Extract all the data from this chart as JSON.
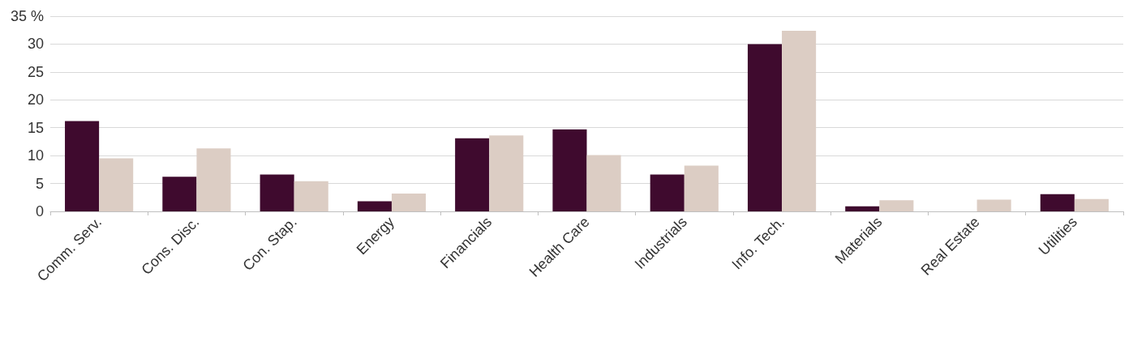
{
  "chart_data": {
    "type": "bar",
    "categories": [
      "Comm. Serv.",
      "Cons. Disc.",
      "Con. Stap.",
      "Energy",
      "Financials",
      "Health Care",
      "Industrials",
      "Info. Tech.",
      "Materials",
      "Real Estate",
      "Utilities"
    ],
    "series": [
      {
        "color": "#3f0a2e",
        "values": [
          16.2,
          6.2,
          6.6,
          1.8,
          13.1,
          14.7,
          6.6,
          30.0,
          0.9,
          null,
          3.1
        ]
      },
      {
        "color": "#dccdc4",
        "values": [
          9.5,
          11.3,
          5.4,
          3.2,
          13.6,
          10.1,
          8.2,
          32.4,
          2.0,
          2.1,
          2.2
        ]
      }
    ],
    "ylim": [
      0,
      35
    ],
    "yticks": [
      0,
      5,
      10,
      15,
      20,
      25,
      30,
      {
        "value": 35,
        "label": "35 %"
      }
    ],
    "grid": "y"
  }
}
